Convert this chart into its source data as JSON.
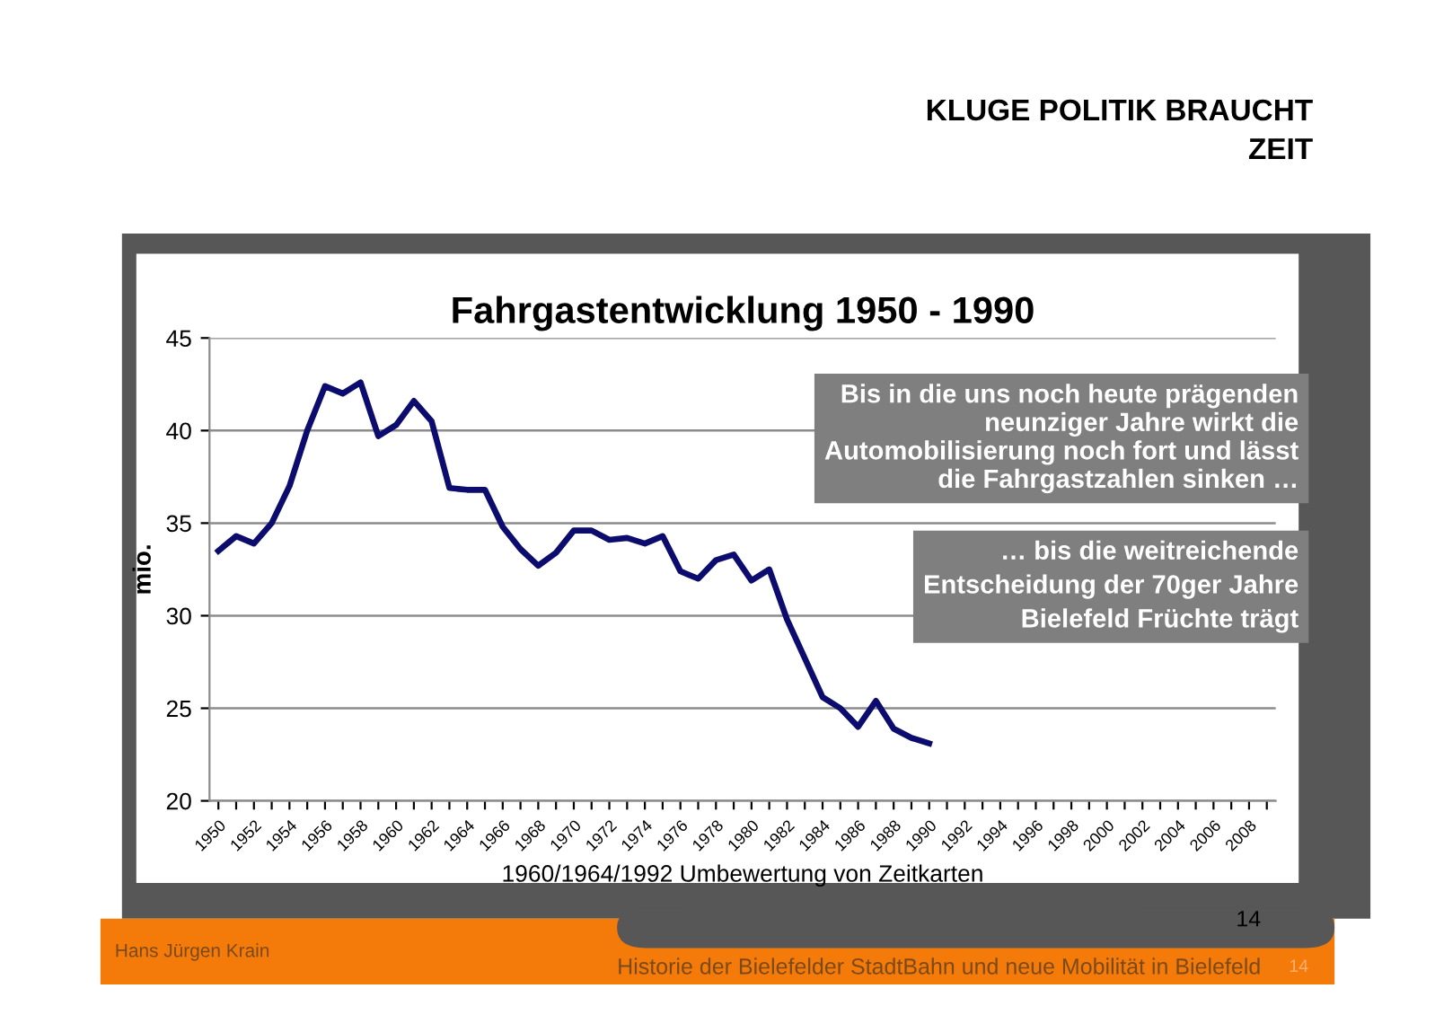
{
  "chart_data": {
    "type": "line",
    "title": "Fahrgastentwicklung 1950 - 1990",
    "ylabel": "mio.",
    "xlabel": "1960/1964/1992 Umbewertung von Zeitkarten",
    "categories": [
      "1950",
      null,
      "1952",
      null,
      "1954",
      null,
      "1956",
      null,
      "1958",
      null,
      "1960",
      null,
      "1962",
      null,
      "1964",
      null,
      "1966",
      null,
      "1968",
      null,
      "1970",
      null,
      "1972",
      null,
      "1974",
      null,
      "1976",
      null,
      "1978",
      null,
      "1980",
      null,
      "1982",
      null,
      "1984",
      null,
      "1986",
      null,
      "1988",
      null,
      "1990",
      null,
      "1992",
      null,
      "1994",
      null,
      "1996",
      null,
      "1998",
      null,
      "2000",
      null,
      "2002",
      null,
      "2004",
      null,
      "2006",
      null,
      "2008",
      null
    ],
    "series": [
      {
        "color": "#0c0c6e",
        "values": [
          33.5,
          34.3,
          33.9,
          35.0,
          37.0,
          40.0,
          42.4,
          42.0,
          42.6,
          39.7,
          40.3,
          41.6,
          40.5,
          36.9,
          36.8,
          36.8,
          34.8,
          33.6,
          32.7,
          33.4,
          34.6,
          34.6,
          34.1,
          34.2,
          33.9,
          34.3,
          32.4,
          32.0,
          33.0,
          33.3,
          31.9,
          32.5,
          29.8,
          27.7,
          25.6,
          25.0,
          24.0,
          25.4,
          23.9,
          23.4,
          23.1,
          null,
          null,
          null,
          null,
          null,
          null,
          null,
          null,
          null,
          null,
          null,
          null,
          null,
          null,
          null,
          null,
          null,
          null,
          null
        ]
      }
    ],
    "ylim": [
      20,
      45
    ],
    "yticks": [
      20,
      25,
      30,
      35,
      40,
      45
    ],
    "grid": "y",
    "legend": false,
    "marker": "none",
    "line_style": "solid",
    "annotations": [
      "KLUGE POLITIK BRAUCHT\nZEIT",
      "Bis in die uns noch heute prägenden\nneunziger Jahre wirkt die\nAutomobilisierung noch fort und lässt\ndie Fahrgastzahlen sinken …",
      "… bis die weitreichende\nEntscheidung der 70ger Jahre\nBielefeld Früchte trägt",
      "14",
      "Hans Jürgen Krain",
      "Historie der Bielefelder StadtBahn und neue Mobilität in Bielefeld",
      "14"
    ]
  }
}
